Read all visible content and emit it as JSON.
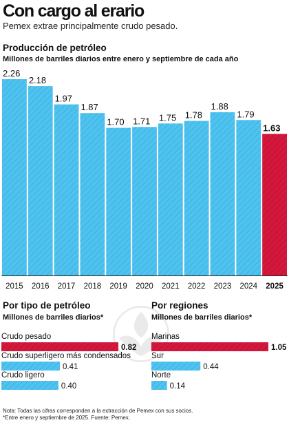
{
  "header": {
    "title": "Con cargo al erario",
    "subtitle": "Pemex extrae principalmente crudo pesado."
  },
  "main_chart": {
    "heading": "Producción de petróleo",
    "subheading": "Millones de barriles diarios entre enero y septiembre de cada año"
  },
  "types_chart": {
    "heading": "Por tipo de petróleo",
    "subheading": "Millones de barriles diarios*"
  },
  "regions_chart": {
    "heading": "Por regiones",
    "subheading": "Millones de barriles diarios*"
  },
  "footer": {
    "note_line1": "Nota: Todas las cifras corresponden a la extracción de Pemex con sus socios.",
    "note_line2": "*Entre enero y septiembre de 2025. Fuente: Pemex."
  },
  "colors": {
    "blue": "#4fc3f0",
    "blue_hatch": "#3aa9d6",
    "red": "#d4173c",
    "red_hatch": "#b8102f",
    "grid": "#444444"
  },
  "chart_data": [
    {
      "type": "bar",
      "categories": [
        "2015",
        "2016",
        "2017",
        "2018",
        "2019",
        "2020",
        "2021",
        "2022",
        "2023",
        "2024",
        "2025"
      ],
      "values": [
        2.26,
        2.18,
        1.97,
        1.87,
        1.7,
        1.71,
        1.75,
        1.78,
        1.88,
        1.79,
        1.63
      ],
      "value_labels": [
        "2.26",
        "2.18",
        "1.97",
        "1.87",
        "1.70",
        "1.71",
        "1.75",
        "1.78",
        "1.88",
        "1.79",
        "1.63"
      ],
      "highlight_index": 10,
      "title": "Producción de petróleo",
      "ylabel": "Millones de barriles diarios entre enero y septiembre de cada año",
      "ylim": [
        0,
        2.3
      ],
      "grid": false
    },
    {
      "type": "bar",
      "orientation": "horizontal",
      "title": "Por tipo de petróleo",
      "categories": [
        "Crudo pesado",
        "Crudo superligero más condensados",
        "Crudo ligero"
      ],
      "values": [
        0.82,
        0.41,
        0.4
      ],
      "value_labels": [
        "0.82",
        "0.41",
        "0.40"
      ],
      "highlight_index": 0
    },
    {
      "type": "bar",
      "orientation": "horizontal",
      "title": "Por regiones",
      "categories": [
        "Marinas",
        "Sur",
        "Norte"
      ],
      "values": [
        1.05,
        0.44,
        0.14
      ],
      "value_labels": [
        "1.05",
        "0.44",
        "0.14"
      ],
      "highlight_index": 0
    }
  ]
}
